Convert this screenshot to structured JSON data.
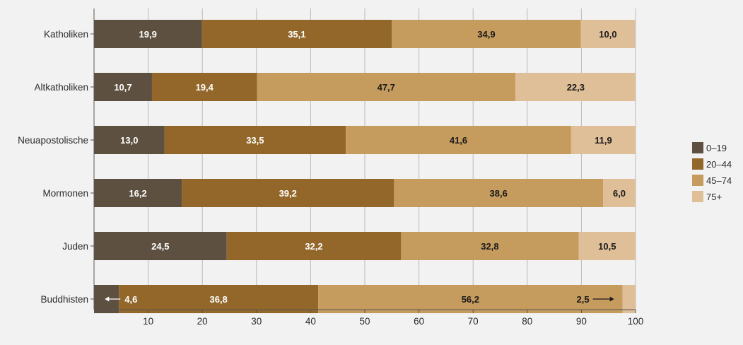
{
  "chart_data": {
    "type": "bar",
    "orientation": "horizontal",
    "stacked": true,
    "title": "",
    "xlabel": "",
    "ylabel": "",
    "xlim": [
      0,
      100
    ],
    "xticks": [
      10,
      20,
      30,
      40,
      50,
      60,
      70,
      80,
      90,
      100
    ],
    "grid": true,
    "legend_position": "right",
    "categories": [
      "Katholiken",
      "Altkatholiken",
      "Neuapostolische",
      "Mormonen",
      "Juden",
      "Buddhisten"
    ],
    "series": [
      {
        "name": "0–19",
        "color": "#5e5040",
        "label_color": "#ffffff",
        "values": [
          19.9,
          10.7,
          13.0,
          16.2,
          24.5,
          4.6
        ]
      },
      {
        "name": "20–44",
        "color": "#93672a",
        "label_color": "#ffffff",
        "values": [
          35.1,
          19.4,
          33.5,
          39.2,
          32.2,
          36.8
        ]
      },
      {
        "name": "45–74",
        "color": "#c59b5e",
        "label_color": "#1a1a1a",
        "values": [
          34.9,
          47.7,
          41.6,
          38.6,
          32.8,
          56.2
        ]
      },
      {
        "name": "75+",
        "color": "#dfbf98",
        "label_color": "#1a1a1a",
        "values": [
          10.0,
          22.3,
          11.9,
          6.0,
          10.5,
          2.5
        ]
      }
    ],
    "value_labels": [
      [
        "19,9",
        "35,1",
        "34,9",
        "10,0"
      ],
      [
        "10,7",
        "19,4",
        "47,7",
        "22,3"
      ],
      [
        "13,0",
        "33,5",
        "41,6",
        "11,9"
      ],
      [
        "16,2",
        "39,2",
        "38,6",
        "6,0"
      ],
      [
        "24,5",
        "32,2",
        "32,8",
        "10,5"
      ],
      [
        "4,6",
        "36,8",
        "56,2",
        "2,5"
      ]
    ],
    "callouts": [
      {
        "category": "Buddhisten",
        "series": "0–19",
        "direction": "left"
      },
      {
        "category": "Buddhisten",
        "series": "75+",
        "direction": "right"
      }
    ]
  }
}
